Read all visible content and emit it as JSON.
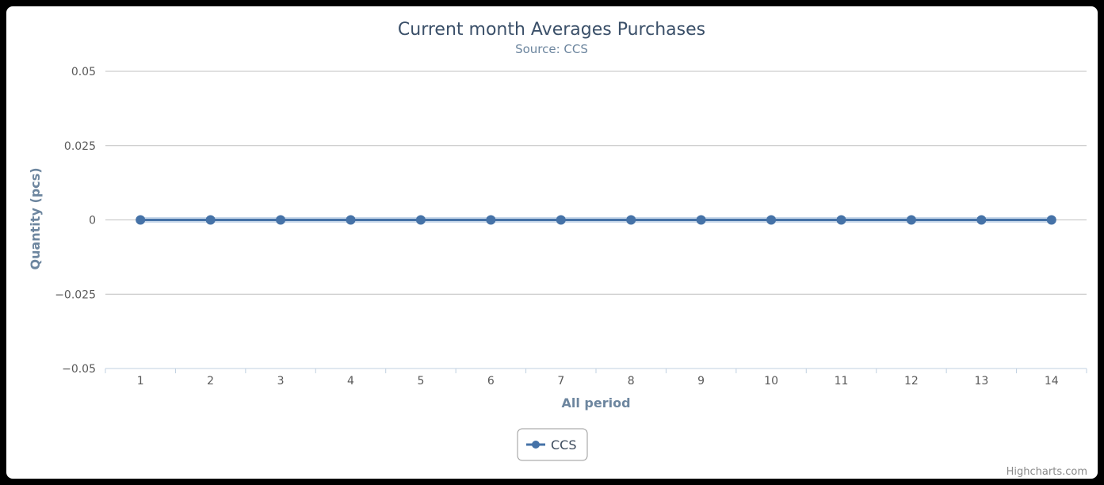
{
  "chart_data": {
    "type": "line",
    "title": "Current month Averages Purchases",
    "subtitle": "Source: CCS",
    "xlabel": "All period",
    "ylabel": "Quantity (pcs)",
    "categories": [
      "1",
      "2",
      "3",
      "4",
      "5",
      "6",
      "7",
      "8",
      "9",
      "10",
      "11",
      "12",
      "13",
      "14"
    ],
    "yticks": [
      "0.05",
      "0.025",
      "0",
      "−0.025",
      "−0.05"
    ],
    "ylim": [
      -0.05,
      0.05
    ],
    "grid": true,
    "legend_position": "bottom-center",
    "series": [
      {
        "name": "CCS",
        "color": "#4572a7",
        "values": [
          0,
          0,
          0,
          0,
          0,
          0,
          0,
          0,
          0,
          0,
          0,
          0,
          0,
          0
        ]
      }
    ]
  },
  "credits": "Highcharts.com"
}
